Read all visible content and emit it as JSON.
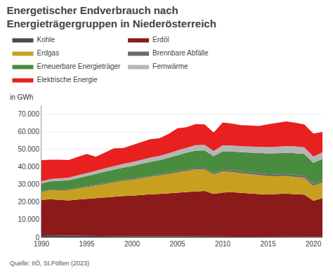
{
  "chart_data": {
    "type": "area",
    "stacked": true,
    "title": "Energetischer Endverbrauch nach\nEnergieträgergruppen in Niederösterreich",
    "subtitle": "in GWh",
    "annotations": [
      "Quelle: IIÖ, St.Pölten (2023)"
    ],
    "x": [
      1990,
      1991,
      1992,
      1993,
      1994,
      1995,
      1996,
      1997,
      1998,
      1999,
      2000,
      2001,
      2002,
      2003,
      2004,
      2005,
      2006,
      2007,
      2008,
      2009,
      2010,
      2011,
      2012,
      2013,
      2014,
      2015,
      2016,
      2017,
      2018,
      2019,
      2020,
      2021
    ],
    "series": [
      {
        "name": "Kohle",
        "color": "#4a4a4a",
        "values": [
          1200,
          1100,
          1000,
          950,
          900,
          850,
          800,
          750,
          700,
          680,
          650,
          630,
          610,
          590,
          570,
          550,
          530,
          510,
          490,
          460,
          440,
          420,
          400,
          380,
          360,
          340,
          320,
          300,
          280,
          260,
          240,
          220
        ]
      },
      {
        "name": "Erdöl",
        "color": "#8b1a1a",
        "values": [
          20000,
          20500,
          20200,
          20000,
          20500,
          21000,
          21500,
          22000,
          22500,
          22800,
          23000,
          23500,
          23800,
          24000,
          24300,
          24800,
          25200,
          25600,
          25800,
          24200,
          25000,
          25200,
          24800,
          24500,
          24200,
          24000,
          24200,
          24500,
          24200,
          24000,
          20500,
          22000
        ]
      },
      {
        "name": "Erdgas",
        "color": "#c8a020",
        "values": [
          4500,
          5000,
          5500,
          5800,
          6200,
          6500,
          7000,
          7500,
          8000,
          8500,
          9000,
          9500,
          10000,
          10500,
          11000,
          11500,
          12000,
          12500,
          12200,
          11000,
          12000,
          11500,
          11200,
          11000,
          10800,
          10500,
          10200,
          10000,
          9800,
          9500,
          8500,
          9000
        ]
      },
      {
        "name": "Brennbare Abfälle",
        "color": "#6a6a6a",
        "values": [
          400,
          420,
          440,
          460,
          480,
          500,
          520,
          540,
          560,
          580,
          600,
          620,
          640,
          660,
          700,
          750,
          800,
          850,
          900,
          880,
          920,
          950,
          970,
          990,
          1010,
          1030,
          1050,
          1070,
          1090,
          1100,
          1080,
          1100
        ]
      },
      {
        "name": "Erneuerbare Energieträger",
        "color": "#4a8c3f",
        "values": [
          4500,
          4800,
          5000,
          5200,
          5500,
          5800,
          6200,
          6500,
          6800,
          7000,
          7200,
          7500,
          7800,
          8000,
          8500,
          9000,
          9500,
          9800,
          10000,
          9500,
          10500,
          10800,
          11000,
          11200,
          11500,
          11800,
          12000,
          12200,
          12400,
          12500,
          12000,
          12300
        ]
      },
      {
        "name": "Fernwärme",
        "color": "#b5b5b5",
        "values": [
          1200,
          1300,
          1400,
          1500,
          1600,
          1700,
          1800,
          1900,
          2000,
          2100,
          2200,
          2300,
          2400,
          2500,
          2600,
          2800,
          3000,
          3100,
          3200,
          3000,
          3400,
          3300,
          3400,
          3500,
          3400,
          3600,
          3700,
          3800,
          3900,
          3800,
          3600,
          3700
        ]
      },
      {
        "name": "Elektrische Energie",
        "color": "#e82020",
        "values": [
          12000,
          11000,
          10500,
          10000,
          10500,
          11000,
          8000,
          9000,
          10000,
          9000,
          9800,
          10000,
          10500,
          10000,
          11000,
          12500,
          11500,
          12000,
          11500,
          10500,
          13000,
          12500,
          12000,
          12000,
          12000,
          13000,
          13500,
          14000,
          13500,
          13000,
          13000,
          11500
        ]
      }
    ],
    "xlim": [
      1990,
      2021
    ],
    "xticks": [
      1990,
      1995,
      2000,
      2005,
      2010,
      2015,
      2020
    ],
    "ylim": [
      0,
      75000
    ],
    "yticks": [
      0,
      {
        "value": 10000,
        "label": "10.000"
      },
      {
        "value": 20000,
        "label": "20.000"
      },
      {
        "value": 30000,
        "label": "30.000"
      },
      {
        "value": 40000,
        "label": "40.000"
      },
      {
        "value": 50000,
        "label": "50.000"
      },
      {
        "value": 60000,
        "label": "60.000"
      },
      {
        "value": 70000,
        "label": "70.000"
      }
    ],
    "grid": true,
    "legend": "top"
  }
}
